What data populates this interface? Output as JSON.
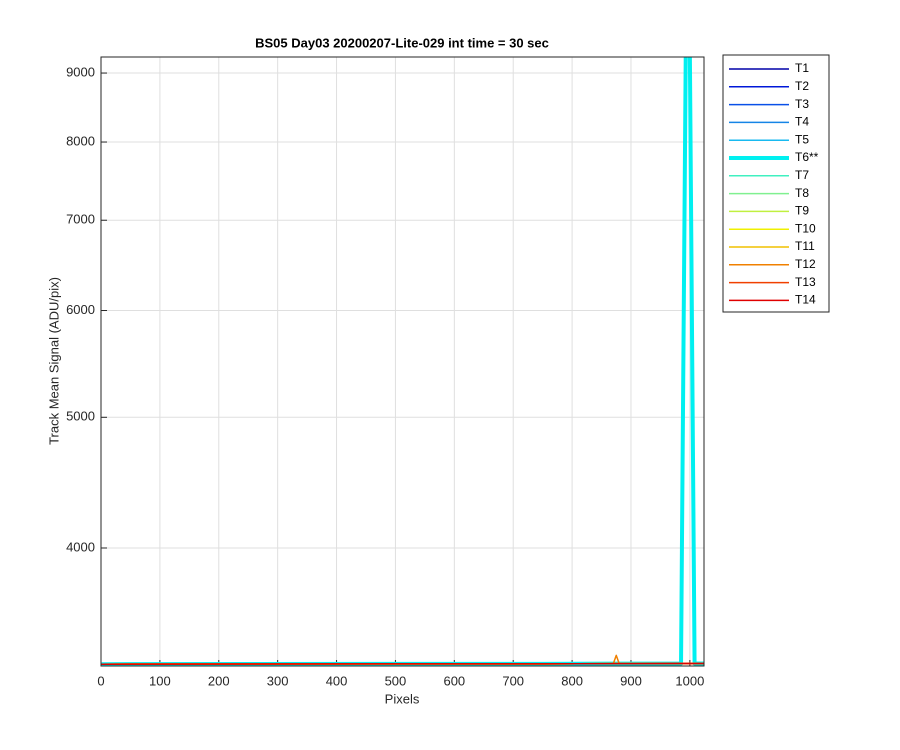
{
  "chart_data": {
    "type": "line",
    "title": "BS05 Day03 20200207-Lite-029 int time = 30 sec",
    "xlabel": "Pixels",
    "ylabel": "Track Mean Signal (ADU/pix)",
    "yscale": "log",
    "grid": true,
    "legend": "outside-right",
    "xlim": [
      0,
      1024
    ],
    "xticks": [
      0,
      100,
      200,
      300,
      400,
      500,
      600,
      700,
      800,
      900,
      1000
    ],
    "ylim": [
      3270,
      9250
    ],
    "yticks": [
      4000,
      5000,
      6000,
      7000,
      8000,
      9000
    ],
    "x": [
      1,
      250,
      500,
      750,
      870,
      875,
      880,
      985,
      993,
      1000,
      1008,
      1024
    ],
    "series": [
      {
        "name": "T1",
        "color": "#0000a8",
        "width": 1.5,
        "values": [
          3280,
          3281,
          3282,
          3282,
          3283,
          3283,
          3283,
          3284,
          3284,
          3284,
          3284,
          3284
        ]
      },
      {
        "name": "T2",
        "color": "#0018d8",
        "width": 1.5,
        "values": [
          3280,
          3281,
          3282,
          3282,
          3283,
          3283,
          3283,
          3284,
          3284,
          3284,
          3284,
          3284
        ]
      },
      {
        "name": "T3",
        "color": "#0a50e8",
        "width": 1.5,
        "values": [
          3280,
          3281,
          3282,
          3282,
          3283,
          3283,
          3283,
          3284,
          3284,
          3284,
          3284,
          3284
        ]
      },
      {
        "name": "T4",
        "color": "#1585e6",
        "width": 1.5,
        "values": [
          3280,
          3281,
          3282,
          3282,
          3283,
          3283,
          3283,
          3284,
          3284,
          3284,
          3284,
          3284
        ]
      },
      {
        "name": "T5",
        "color": "#18baf0",
        "width": 1.5,
        "values": [
          3280,
          3281,
          3282,
          3282,
          3283,
          3283,
          3283,
          3284,
          3284,
          3284,
          3284,
          3284
        ]
      },
      {
        "name": "T6**",
        "color": "#00f0f0",
        "width": 4,
        "values": [
          3280,
          3281,
          3282,
          3282,
          3283,
          3283,
          3283,
          3284,
          9300,
          9300,
          3284,
          3284
        ]
      },
      {
        "name": "T7",
        "color": "#40f0c0",
        "width": 1.5,
        "values": [
          3280,
          3281,
          3282,
          3282,
          3283,
          3283,
          3283,
          3284,
          3284,
          3284,
          3284,
          3284
        ]
      },
      {
        "name": "T8",
        "color": "#80f090",
        "width": 1.5,
        "values": [
          3280,
          3281,
          3282,
          3282,
          3283,
          3283,
          3283,
          3284,
          3284,
          3284,
          3284,
          3284
        ]
      },
      {
        "name": "T9",
        "color": "#c0f040",
        "width": 1.5,
        "values": [
          3280,
          3281,
          3282,
          3282,
          3283,
          3283,
          3283,
          3284,
          3284,
          3284,
          3284,
          3284
        ]
      },
      {
        "name": "T10",
        "color": "#f0f000",
        "width": 1.5,
        "values": [
          3280,
          3281,
          3282,
          3282,
          3283,
          3283,
          3283,
          3284,
          3284,
          3284,
          3284,
          3284
        ]
      },
      {
        "name": "T11",
        "color": "#f0c000",
        "width": 1.5,
        "values": [
          3280,
          3281,
          3282,
          3282,
          3283,
          3283,
          3283,
          3284,
          3284,
          3284,
          3284,
          3284
        ]
      },
      {
        "name": "T12",
        "color": "#f08000",
        "width": 1.5,
        "values": [
          3280,
          3281,
          3282,
          3282,
          3283,
          3330,
          3283,
          3284,
          3284,
          3284,
          3284,
          3284
        ]
      },
      {
        "name": "T13",
        "color": "#f04000",
        "width": 1.5,
        "values": [
          3280,
          3281,
          3282,
          3282,
          3283,
          3283,
          3283,
          3284,
          3284,
          3284,
          3284,
          3284
        ]
      },
      {
        "name": "T14",
        "color": "#e00000",
        "width": 1.5,
        "values": [
          3280,
          3281,
          3282,
          3282,
          3283,
          3283,
          3283,
          3284,
          3284,
          3284,
          3284,
          3284
        ]
      }
    ]
  }
}
